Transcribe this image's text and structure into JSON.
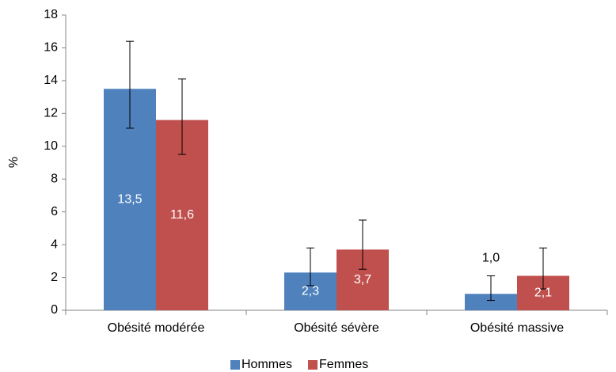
{
  "chart_data": {
    "type": "bar",
    "y_label": "%",
    "categories": [
      "Obésité modérée",
      "Obésité sévère",
      "Obésité massive"
    ],
    "series": [
      {
        "name": "Hommes",
        "color": "#4f81bd",
        "values": [
          13.5,
          2.3,
          1.0
        ],
        "value_labels": [
          "13,5",
          "2,3",
          "1,0"
        ],
        "ci_low": [
          11.1,
          1.5,
          0.6
        ],
        "ci_high": [
          16.4,
          3.8,
          2.1
        ]
      },
      {
        "name": "Femmes",
        "color": "#c0504d",
        "values": [
          11.6,
          3.7,
          2.1
        ],
        "value_labels": [
          "11,6",
          "3,7",
          "2,1"
        ],
        "ci_low": [
          9.5,
          2.5,
          1.3
        ],
        "ci_high": [
          14.1,
          5.5,
          3.8
        ]
      }
    ],
    "ylim": [
      0,
      18
    ],
    "yticks": [
      0,
      2,
      4,
      6,
      8,
      10,
      12,
      14,
      16,
      18
    ],
    "grid": false,
    "legend": "bottom"
  }
}
